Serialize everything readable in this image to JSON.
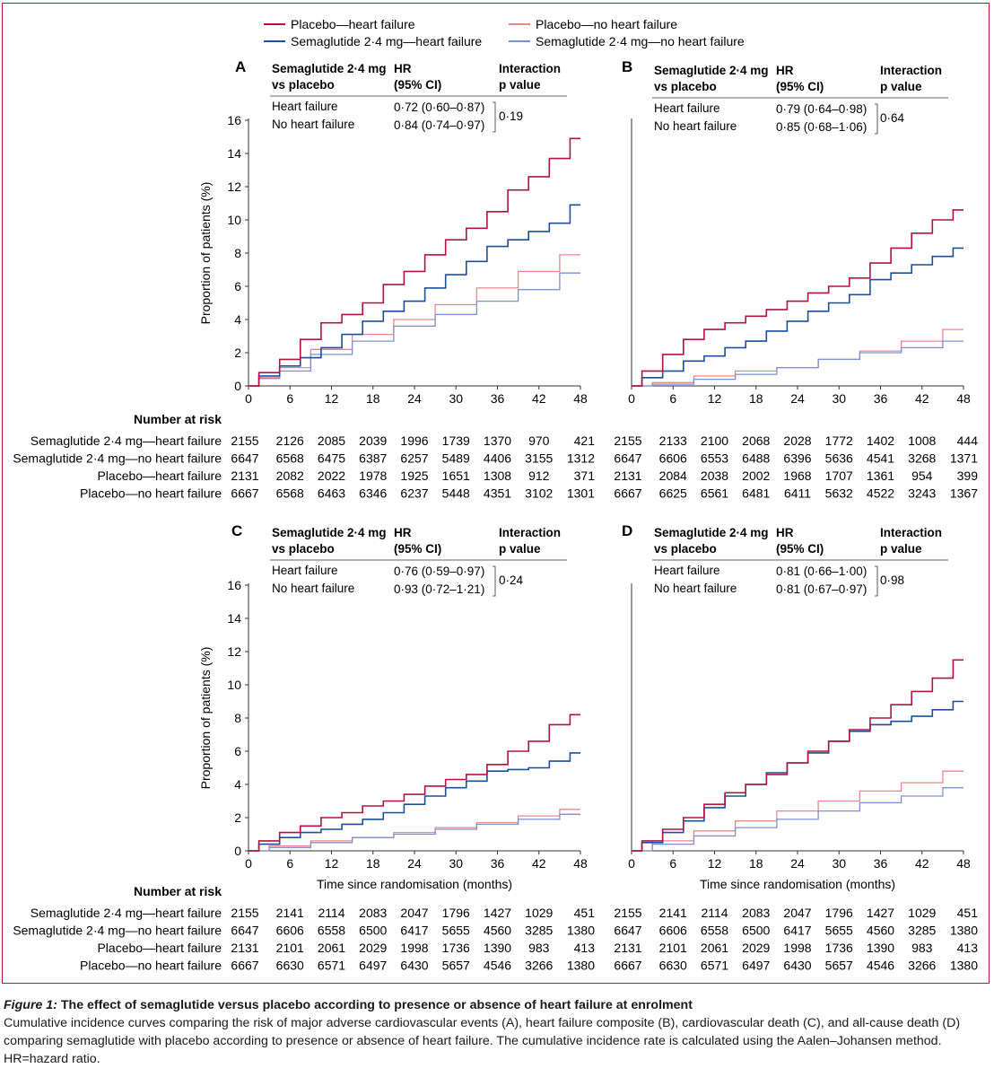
{
  "caption": {
    "figure_label": "Figure 1:",
    "title": " The effect of semaglutide versus placebo according to presence or absence of heart failure at enrolment",
    "text": "Cumulative incidence curves comparing the risk of major adverse cardiovascular events (A), heart failure composite (B), cardiovascular death (C), and all-cause death (D) comparing semaglutide with placebo according to presence or absence of heart failure. The cumulative incidence rate is calculated using the Aalen–Johansen method. HR=hazard ratio."
  },
  "legend": {
    "entries": [
      {
        "key": "placebo_hf",
        "label": "Placebo—heart failure",
        "color": "#b5123f"
      },
      {
        "key": "placebo_nohf",
        "label": "Placebo—no heart failure",
        "color": "#e8878c"
      },
      {
        "key": "sema_hf",
        "label": "Semaglutide 2·4 mg—heart failure",
        "color": "#1c4f9c"
      },
      {
        "key": "sema_nohf",
        "label": "Semaglutide 2·4 mg—no heart failure",
        "color": "#7f8fd3"
      }
    ]
  },
  "shared": {
    "table_header_comparison": [
      "Semaglutide 2·4 mg",
      "vs placebo"
    ],
    "table_header_hr": [
      "HR",
      "(95% CI)"
    ],
    "table_header_p": [
      "Interaction",
      "p value"
    ],
    "row_labels": [
      "Heart failure",
      "No heart failure"
    ],
    "number_at_risk_title": "Number at risk",
    "risk_labels": [
      "Semaglutide 2·4 mg—heart failure",
      "Semaglutide 2·4 mg—no heart failure",
      "Placebo—heart failure",
      "Placebo—no heart failure"
    ],
    "y_axis_label": "Proportion of patients (%)",
    "x_axis_label": "Time since randomisation (months)"
  },
  "chart_data": [
    {
      "type": "line",
      "panel": "A",
      "x_ticks": [
        0,
        6,
        12,
        18,
        24,
        30,
        36,
        42,
        48
      ],
      "y_ticks": [
        0,
        2,
        4,
        6,
        8,
        10,
        12,
        14,
        16
      ],
      "xlim": [
        0,
        48
      ],
      "ylim": [
        0,
        16
      ],
      "hr": [
        "0·72 (0·60–0·87)",
        "0·84 (0·74–0·97)"
      ],
      "p_value": "0·19",
      "series": [
        {
          "key": "placebo_nohf",
          "x": [
            0,
            3,
            6,
            12,
            18,
            24,
            30,
            36,
            42,
            48
          ],
          "y": [
            0,
            0.5,
            1.1,
            2.2,
            3.1,
            4.0,
            4.9,
            5.9,
            6.9,
            7.9
          ]
        },
        {
          "key": "sema_nohf",
          "x": [
            0,
            3,
            6,
            12,
            18,
            24,
            30,
            36,
            42,
            48
          ],
          "y": [
            0,
            0.45,
            0.9,
            1.9,
            2.7,
            3.6,
            4.3,
            5.1,
            5.8,
            6.8
          ]
        },
        {
          "key": "sema_hf",
          "x": [
            0,
            3,
            6,
            9,
            12,
            15,
            18,
            21,
            24,
            27,
            30,
            33,
            36,
            39,
            42,
            45,
            48
          ],
          "y": [
            0,
            0.6,
            1.2,
            1.7,
            2.3,
            3.1,
            3.9,
            4.5,
            5.1,
            5.9,
            6.7,
            7.5,
            8.4,
            8.8,
            9.3,
            9.8,
            10.9
          ]
        },
        {
          "key": "placebo_hf",
          "x": [
            0,
            3,
            6,
            9,
            12,
            15,
            18,
            21,
            24,
            27,
            30,
            33,
            36,
            39,
            42,
            45,
            48
          ],
          "y": [
            0,
            0.8,
            1.6,
            2.8,
            3.8,
            4.3,
            5.0,
            6.1,
            6.9,
            7.9,
            8.8,
            9.5,
            10.5,
            11.8,
            12.6,
            13.7,
            14.9
          ]
        }
      ],
      "number_at_risk": [
        [
          2155,
          2126,
          2085,
          2039,
          1996,
          1739,
          1370,
          970,
          421
        ],
        [
          6647,
          6568,
          6475,
          6387,
          6257,
          5489,
          4406,
          3155,
          1312
        ],
        [
          2131,
          2082,
          2022,
          1978,
          1925,
          1651,
          1308,
          912,
          371
        ],
        [
          6667,
          6568,
          6463,
          6346,
          6237,
          5448,
          4351,
          3102,
          1301
        ]
      ]
    },
    {
      "type": "line",
      "panel": "B",
      "x_ticks": [
        0,
        6,
        12,
        18,
        24,
        30,
        36,
        42,
        48
      ],
      "xlim": [
        0,
        48
      ],
      "ylim": [
        0,
        16
      ],
      "hr": [
        "0·79 (0·64–0·98)",
        "0·85 (0·68–1·06)"
      ],
      "p_value": "0·64",
      "series": [
        {
          "key": "placebo_nohf",
          "x": [
            0,
            6,
            12,
            18,
            24,
            30,
            36,
            42,
            48
          ],
          "y": [
            0,
            0.2,
            0.6,
            0.9,
            1.1,
            1.6,
            2.1,
            2.7,
            3.4
          ]
        },
        {
          "key": "sema_nohf",
          "x": [
            0,
            6,
            12,
            18,
            24,
            30,
            36,
            42,
            48
          ],
          "y": [
            0,
            0.1,
            0.4,
            0.7,
            1.1,
            1.6,
            2.0,
            2.3,
            2.7
          ]
        },
        {
          "key": "sema_hf",
          "x": [
            0,
            3,
            6,
            9,
            12,
            15,
            18,
            21,
            24,
            27,
            30,
            33,
            36,
            39,
            42,
            45,
            48
          ],
          "y": [
            0,
            0.5,
            0.9,
            1.5,
            1.8,
            2.3,
            2.7,
            3.3,
            3.9,
            4.5,
            5.0,
            5.5,
            6.4,
            6.8,
            7.3,
            7.8,
            8.3
          ]
        },
        {
          "key": "placebo_hf",
          "x": [
            0,
            3,
            6,
            9,
            12,
            15,
            18,
            21,
            24,
            27,
            30,
            33,
            36,
            39,
            42,
            45,
            48
          ],
          "y": [
            0,
            0.9,
            1.9,
            2.8,
            3.4,
            3.8,
            4.2,
            4.6,
            5.1,
            5.6,
            6.0,
            6.5,
            7.4,
            8.3,
            9.2,
            10.0,
            10.6
          ]
        }
      ],
      "number_at_risk": [
        [
          2155,
          2133,
          2100,
          2068,
          2028,
          1772,
          1402,
          1008,
          444
        ],
        [
          6647,
          6606,
          6553,
          6488,
          6396,
          5636,
          4541,
          3268,
          1371
        ],
        [
          2131,
          2084,
          2038,
          2002,
          1968,
          1707,
          1361,
          954,
          399
        ],
        [
          6667,
          6625,
          6561,
          6481,
          6411,
          5632,
          4522,
          3243,
          1367
        ]
      ]
    },
    {
      "type": "line",
      "panel": "C",
      "x_ticks": [
        0,
        6,
        12,
        18,
        24,
        30,
        36,
        42,
        48
      ],
      "y_ticks": [
        0,
        2,
        4,
        6,
        8,
        10,
        12,
        14,
        16
      ],
      "xlim": [
        0,
        48
      ],
      "ylim": [
        0,
        16
      ],
      "hr": [
        "0·76 (0·59–0·97)",
        "0·93 (0·72–1·21)"
      ],
      "p_value": "0·24",
      "series": [
        {
          "key": "placebo_nohf",
          "x": [
            0,
            6,
            12,
            18,
            24,
            30,
            36,
            42,
            48
          ],
          "y": [
            0,
            0.3,
            0.6,
            0.8,
            1.1,
            1.4,
            1.7,
            2.1,
            2.5
          ]
        },
        {
          "key": "sema_nohf",
          "x": [
            0,
            6,
            12,
            18,
            24,
            30,
            36,
            42,
            48
          ],
          "y": [
            0,
            0.2,
            0.5,
            0.8,
            1.0,
            1.3,
            1.6,
            1.9,
            2.2
          ]
        },
        {
          "key": "sema_hf",
          "x": [
            0,
            3,
            6,
            9,
            12,
            15,
            18,
            21,
            24,
            27,
            30,
            33,
            36,
            39,
            42,
            45,
            48
          ],
          "y": [
            0,
            0.4,
            0.8,
            1.1,
            1.3,
            1.6,
            1.9,
            2.3,
            2.8,
            3.3,
            3.8,
            4.2,
            4.8,
            4.9,
            5.0,
            5.4,
            5.9
          ]
        },
        {
          "key": "placebo_hf",
          "x": [
            0,
            3,
            6,
            9,
            12,
            15,
            18,
            21,
            24,
            27,
            30,
            33,
            36,
            39,
            42,
            45,
            48
          ],
          "y": [
            0,
            0.6,
            1.1,
            1.5,
            2.0,
            2.3,
            2.7,
            3.0,
            3.4,
            3.9,
            4.3,
            4.6,
            5.2,
            6.0,
            6.6,
            7.6,
            8.2
          ]
        }
      ],
      "number_at_risk": [
        [
          2155,
          2141,
          2114,
          2083,
          2047,
          1796,
          1427,
          1029,
          451
        ],
        [
          6647,
          6606,
          6558,
          6500,
          6417,
          5655,
          4560,
          3285,
          1380
        ],
        [
          2131,
          2101,
          2061,
          2029,
          1998,
          1736,
          1390,
          983,
          413
        ],
        [
          6667,
          6630,
          6571,
          6497,
          6430,
          5657,
          4546,
          3266,
          1380
        ]
      ]
    },
    {
      "type": "line",
      "panel": "D",
      "x_ticks": [
        0,
        6,
        12,
        18,
        24,
        30,
        36,
        42,
        48
      ],
      "xlim": [
        0,
        48
      ],
      "ylim": [
        0,
        16
      ],
      "hr": [
        "0·81 (0·66–1·00)",
        "0·81 (0·67–0·97)"
      ],
      "p_value": "0·98",
      "series": [
        {
          "key": "placebo_nohf",
          "x": [
            0,
            6,
            12,
            18,
            24,
            30,
            36,
            42,
            48
          ],
          "y": [
            0,
            0.6,
            1.2,
            1.8,
            2.4,
            3.0,
            3.6,
            4.1,
            4.8
          ]
        },
        {
          "key": "sema_nohf",
          "x": [
            0,
            6,
            12,
            18,
            24,
            30,
            36,
            42,
            48
          ],
          "y": [
            0,
            0.4,
            0.9,
            1.4,
            1.9,
            2.4,
            2.9,
            3.3,
            3.8
          ]
        },
        {
          "key": "sema_hf",
          "x": [
            0,
            3,
            6,
            9,
            12,
            15,
            18,
            21,
            24,
            27,
            30,
            33,
            36,
            39,
            42,
            45,
            48
          ],
          "y": [
            0,
            0.5,
            1.1,
            1.8,
            2.6,
            3.3,
            4.0,
            4.7,
            5.3,
            5.9,
            6.6,
            7.2,
            7.6,
            7.8,
            8.1,
            8.5,
            9.0
          ]
        },
        {
          "key": "placebo_hf",
          "x": [
            0,
            3,
            6,
            9,
            12,
            15,
            18,
            21,
            24,
            27,
            30,
            33,
            36,
            39,
            42,
            45,
            48
          ],
          "y": [
            0,
            0.6,
            1.3,
            2.0,
            2.8,
            3.5,
            4.0,
            4.6,
            5.3,
            6.0,
            6.6,
            7.3,
            8.0,
            8.8,
            9.6,
            10.4,
            11.5
          ]
        }
      ],
      "number_at_risk": [
        [
          2155,
          2141,
          2114,
          2083,
          2047,
          1796,
          1427,
          1029,
          451
        ],
        [
          6647,
          6606,
          6558,
          6500,
          6417,
          5655,
          4560,
          3285,
          1380
        ],
        [
          2131,
          2101,
          2061,
          2029,
          1998,
          1736,
          1390,
          983,
          413
        ],
        [
          6667,
          6630,
          6571,
          6497,
          6430,
          5657,
          4546,
          3266,
          1380
        ]
      ]
    }
  ]
}
